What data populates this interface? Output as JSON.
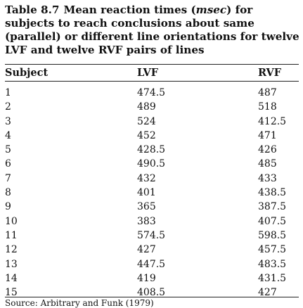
{
  "caption": {
    "label": "Table 8.7",
    "text_before_em": "Mean reaction times (",
    "em": "msec",
    "text_after_em": ") for subjects to reach conclusions about same (parallel) or different line orientations for twelve LVF and twelve RVF pairs of lines"
  },
  "table": {
    "headers": [
      "Subject",
      "LVF",
      "RVF"
    ],
    "rows": [
      [
        "1",
        "474.5",
        "487"
      ],
      [
        "2",
        "489",
        "518"
      ],
      [
        "3",
        "524",
        "412.5"
      ],
      [
        "4",
        "452",
        "471"
      ],
      [
        "5",
        "428.5",
        "426"
      ],
      [
        "6",
        "490.5",
        "485"
      ],
      [
        "7",
        "432",
        "433"
      ],
      [
        "8",
        "401",
        "438.5"
      ],
      [
        "9",
        "365",
        "387.5"
      ],
      [
        "10",
        "383",
        "407.5"
      ],
      [
        "11",
        "574.5",
        "598.5"
      ],
      [
        "12",
        "427",
        "457.5"
      ],
      [
        "13",
        "447.5",
        "483.5"
      ],
      [
        "14",
        "419",
        "431.5"
      ],
      [
        "15",
        "408.5",
        "427"
      ]
    ]
  },
  "source": "Source: Arbitrary and Funk (1979)"
}
